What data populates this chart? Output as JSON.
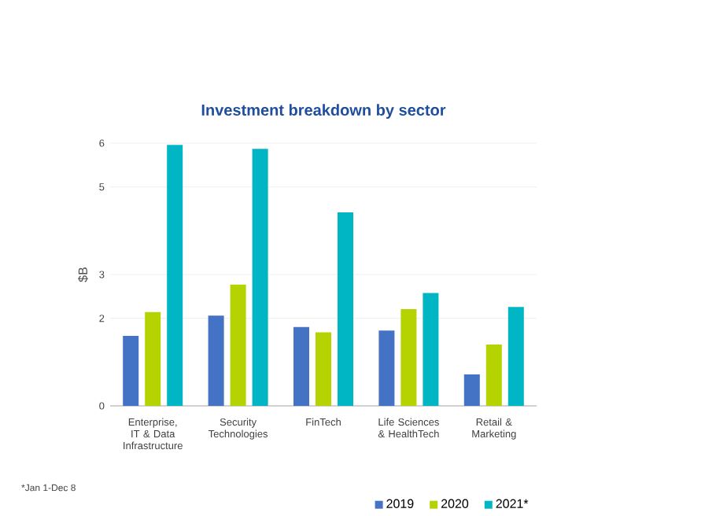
{
  "chart_data": {
    "type": "bar",
    "title": "Investment breakdown by sector",
    "ylabel": "$B",
    "categories": [
      "Enterprise, IT & Data Infrastructure",
      "Security Technologies",
      "FinTech",
      "Life Sciences & HealthTech",
      "Retail & Marketing"
    ],
    "series": [
      {
        "name": "2019",
        "color": "#4472c4",
        "values": [
          1.6,
          2.06,
          1.8,
          1.72,
          0.72
        ]
      },
      {
        "name": "2020",
        "color": "#b5d300",
        "values": [
          2.14,
          2.77,
          1.68,
          2.21,
          1.4
        ]
      },
      {
        "name": "2021*",
        "color": "#00b5c4",
        "values": [
          5.96,
          5.87,
          4.42,
          2.58,
          2.26
        ]
      }
    ],
    "ylim": [
      0,
      6
    ],
    "yticks": [
      0,
      2,
      3,
      5,
      6
    ],
    "grid": "y",
    "legend": "bottom right",
    "annotations": [
      "*Jan 1-Dec 8"
    ]
  }
}
